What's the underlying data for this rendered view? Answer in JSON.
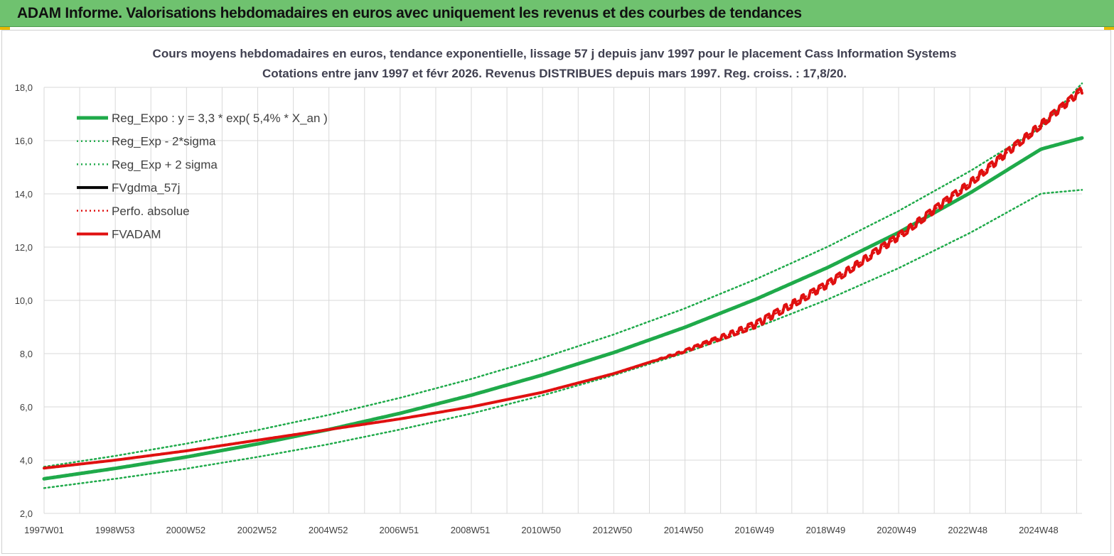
{
  "banner": {
    "title": "ADAM Informe. Valorisations hebdomadaires en euros avec uniquement les revenus et des courbes de tendances"
  },
  "colors": {
    "banner_bg": "#6fc26f",
    "reg_green": "#1faa4a",
    "fv_red": "#e01010",
    "fv_black": "#000000",
    "grid": "#d9d9d9"
  },
  "chart_data": {
    "type": "line",
    "title": [
      "Cours moyens hebdomadaires en euros, tendance exponentielle, lissage 57 j depuis janv 1997 pour le placement Cass Information Systems",
      "Cotations entre janv 1997 et févr 2026. Revenus DISTRIBUES depuis mars 1997. Reg. croiss. : 17,8/20."
    ],
    "xlabel": "",
    "ylabel": "",
    "xlim": [
      1997.0,
      2026.15
    ],
    "ylim": [
      2,
      18
    ],
    "y_ticks": [
      2,
      4,
      6,
      8,
      10,
      12,
      14,
      16,
      18
    ],
    "y_tick_labels": [
      "2,0",
      "4,0",
      "6,0",
      "8,0",
      "10,0",
      "12,0",
      "14,0",
      "16,0",
      "18,0"
    ],
    "x_ticks": [
      1997.0,
      1998.99,
      2000.98,
      2002.98,
      2004.98,
      2006.97,
      2008.97,
      2010.96,
      2012.96,
      2014.96,
      2016.95,
      2018.95,
      2020.94,
      2022.94,
      2024.93
    ],
    "x_tick_labels": [
      "1997W01",
      "1998W53",
      "2000W52",
      "2002W52",
      "2004W52",
      "2006W51",
      "2008W51",
      "2010W50",
      "2012W50",
      "2014W50",
      "2016W49",
      "2018W49",
      "2020W49",
      "2022W48",
      "2024W48"
    ],
    "grid": true,
    "legend_position": "top-left",
    "series": [
      {
        "name": "Reg_Expo : y = 3,3 * exp( 5,4% *  X_an )",
        "style": "solid-thick",
        "color": "#1faa4a",
        "x": [
          1997.0,
          1999.0,
          2001.0,
          2003.0,
          2005.0,
          2007.0,
          2009.0,
          2011.0,
          2013.0,
          2015.0,
          2017.0,
          2019.0,
          2021.0,
          2023.0,
          2025.0,
          2026.15
        ],
        "y": [
          3.3,
          3.69,
          4.12,
          4.61,
          5.15,
          5.76,
          6.44,
          7.2,
          8.04,
          8.99,
          10.05,
          11.23,
          12.55,
          14.03,
          15.68,
          16.1
        ]
      },
      {
        "name": "Reg_Exp - 2*sigma",
        "style": "dotted",
        "color": "#1faa4a",
        "x": [
          1997.0,
          1999.0,
          2001.0,
          2003.0,
          2005.0,
          2007.0,
          2009.0,
          2011.0,
          2013.0,
          2015.0,
          2017.0,
          2019.0,
          2021.0,
          2023.0,
          2025.0,
          2026.15
        ],
        "y": [
          2.95,
          3.3,
          3.68,
          4.12,
          4.6,
          5.15,
          5.75,
          6.43,
          7.19,
          8.03,
          8.98,
          10.03,
          11.21,
          12.53,
          14.01,
          14.15
        ]
      },
      {
        "name": "Reg_Exp + 2 sigma",
        "style": "dotted",
        "color": "#1faa4a",
        "x": [
          1997.0,
          1999.0,
          2001.0,
          2003.0,
          2005.0,
          2007.0,
          2009.0,
          2011.0,
          2013.0,
          2015.0,
          2017.0,
          2019.0,
          2021.0,
          2023.0,
          2025.0,
          2026.15
        ],
        "y": [
          3.75,
          4.16,
          4.62,
          5.13,
          5.7,
          6.34,
          7.05,
          7.84,
          8.72,
          9.7,
          10.8,
          12.01,
          13.36,
          14.85,
          16.5,
          18.15
        ]
      },
      {
        "name": "FVgdma_57j",
        "style": "solid",
        "color": "#000000",
        "x": [
          1997.0,
          1999.0,
          2001.0,
          2003.0,
          2005.0,
          2007.0,
          2009.0,
          2011.0,
          2013.0,
          2015.0,
          2017.0,
          2019.0,
          2020.0,
          2021.0,
          2023.0,
          2025.0,
          2026.15
        ],
        "y": [
          3.7,
          4.0,
          4.35,
          4.75,
          5.15,
          5.55,
          6.0,
          6.55,
          7.25,
          8.1,
          9.1,
          10.6,
          11.5,
          12.4,
          14.4,
          16.6,
          17.9
        ]
      },
      {
        "name": "Perfo. absolue",
        "style": "dotted",
        "color": "#e01010",
        "x": [
          1997.0,
          1999.0,
          2001.0,
          2003.0,
          2005.0,
          2007.0,
          2009.0,
          2011.0,
          2013.0,
          2015.0,
          2017.0,
          2019.0,
          2020.0,
          2021.0,
          2023.0,
          2025.0,
          2026.15
        ],
        "y": [
          3.7,
          4.0,
          4.35,
          4.75,
          5.15,
          5.55,
          6.0,
          6.55,
          7.25,
          8.1,
          9.1,
          10.6,
          11.5,
          12.4,
          14.4,
          16.6,
          17.9
        ]
      },
      {
        "name": "FVADAM",
        "style": "solid-thick-stepped",
        "color": "#e01010",
        "x": [
          1997.0,
          1999.0,
          2001.0,
          2003.0,
          2005.0,
          2007.0,
          2009.0,
          2011.0,
          2013.0,
          2015.0,
          2017.0,
          2019.0,
          2020.0,
          2021.0,
          2023.0,
          2025.0,
          2026.15
        ],
        "y": [
          3.7,
          4.0,
          4.35,
          4.75,
          5.15,
          5.55,
          6.0,
          6.55,
          7.25,
          8.1,
          9.1,
          10.6,
          11.5,
          12.4,
          14.4,
          16.6,
          17.9
        ]
      }
    ]
  }
}
